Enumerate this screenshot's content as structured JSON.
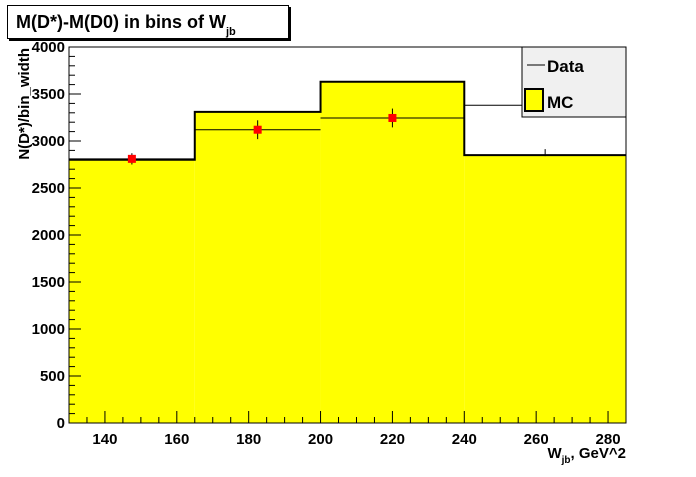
{
  "chart_data": {
    "type": "bar",
    "title_main": "M(D*)-M(D0) in bins of W",
    "title_sub": "jb",
    "xlabel_main": "W",
    "xlabel_sub": "jb",
    "xlabel_rest": ", GeV^2",
    "ylabel": "N(D*)/bin_width",
    "xlim": [
      130,
      285
    ],
    "ylim": [
      0,
      4000
    ],
    "x_ticks": [
      140,
      160,
      180,
      200,
      220,
      240,
      260,
      280
    ],
    "y_ticks": [
      0,
      500,
      1000,
      1500,
      2000,
      2500,
      3000,
      3500,
      4000
    ],
    "bin_edges": [
      130,
      165,
      200,
      240,
      285
    ],
    "series": [
      {
        "name": "MC",
        "type": "histogram",
        "values": [
          2800,
          3310,
          3630,
          2850
        ],
        "color": "#ffff00"
      },
      {
        "name": "Data",
        "type": "points",
        "x": [
          147.5,
          182.5,
          220
        ],
        "y": [
          2810,
          3120,
          3245
        ],
        "yerr": [
          60,
          100,
          100
        ],
        "xerr": [
          17.5,
          17.5,
          20
        ],
        "marker_color": "#ff0000"
      }
    ],
    "extra_data_bar": {
      "x": [
        240,
        285
      ],
      "y": 3380,
      "yerr": 80
    },
    "legend": {
      "position": "top-right",
      "entries": [
        {
          "label": "Data",
          "symbol": "line"
        },
        {
          "label": "MC",
          "symbol": "box"
        }
      ]
    }
  },
  "colors": {
    "fill": "#ffff00",
    "marker": "#ff0000",
    "frame": "#000000",
    "legend_bg": "#f0f0f0"
  }
}
